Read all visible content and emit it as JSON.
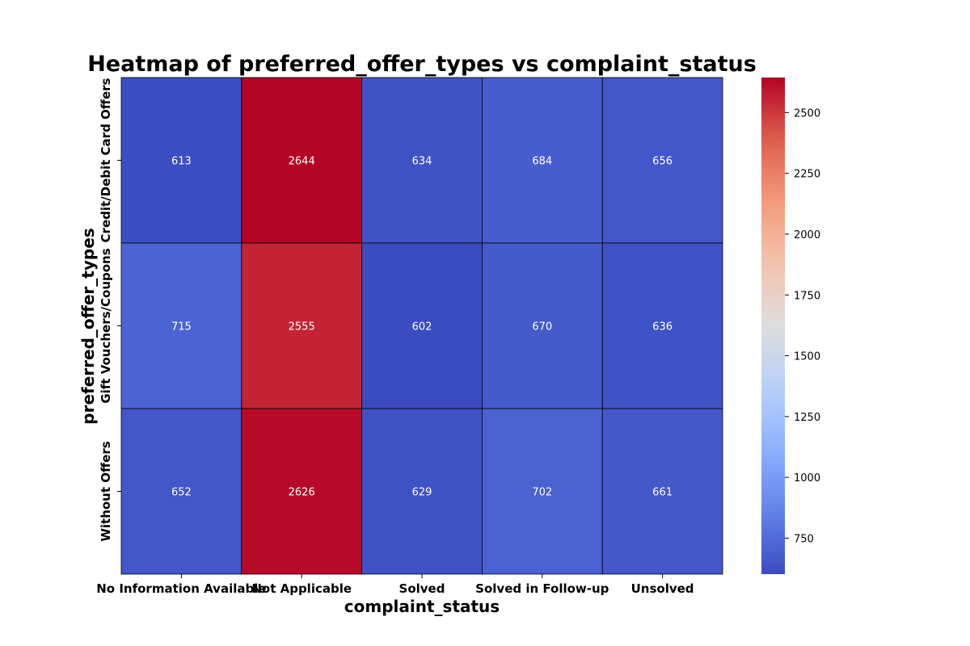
{
  "chart_data": {
    "type": "heatmap",
    "title": "Heatmap of preferred_offer_types vs complaint_status",
    "xlabel": "complaint_status",
    "ylabel": "preferred_offer_types",
    "x_categories": [
      "No Information Available",
      "Not Applicable",
      "Solved",
      "Solved in Follow-up",
      "Unsolved"
    ],
    "y_categories": [
      "Credit/Debit Card Offers",
      "Gift Vouchers/Coupons",
      "Without Offers"
    ],
    "values": [
      [
        613,
        2644,
        634,
        684,
        656
      ],
      [
        715,
        2555,
        602,
        670,
        636
      ],
      [
        652,
        2626,
        629,
        702,
        661
      ]
    ],
    "colormap": "coolwarm",
    "colorbar": {
      "range": [
        602,
        2644
      ],
      "ticks": [
        750,
        1000,
        1250,
        1500,
        1750,
        2000,
        2250,
        2500
      ]
    },
    "cell_border_color": "#000000"
  }
}
